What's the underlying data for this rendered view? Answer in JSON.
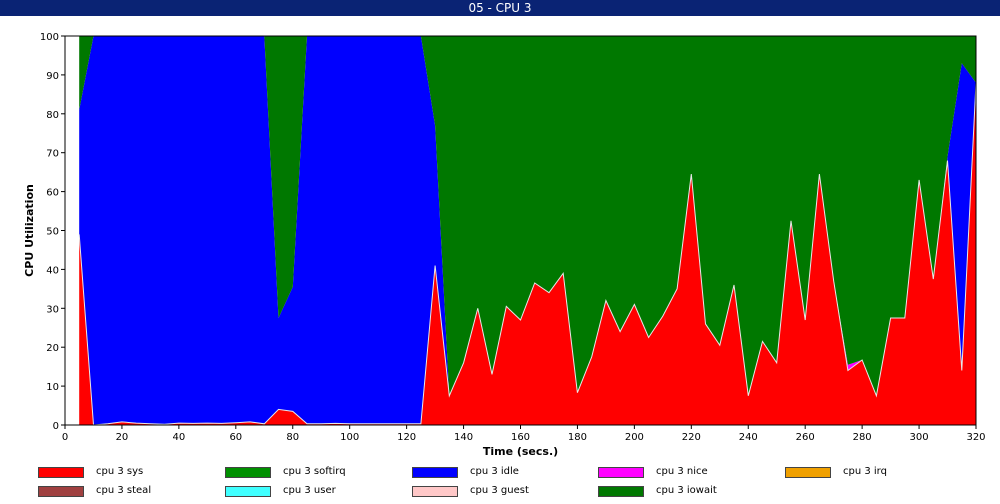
{
  "window": {
    "title": "05 - CPU 3"
  },
  "chart_data": {
    "type": "area",
    "stacked": true,
    "title": "",
    "xlabel": "Time (secs.)",
    "ylabel": "CPU Utilization",
    "xlim": [
      0,
      320
    ],
    "ylim": [
      0,
      100
    ],
    "xticks": [
      0,
      20,
      40,
      60,
      80,
      100,
      120,
      140,
      160,
      180,
      200,
      220,
      240,
      260,
      280,
      300,
      320
    ],
    "yticks": [
      0,
      10,
      20,
      30,
      40,
      50,
      60,
      70,
      80,
      90,
      100
    ],
    "legend_placement": "bottom",
    "x": [
      5,
      10,
      15,
      20,
      25,
      30,
      35,
      40,
      45,
      50,
      55,
      60,
      65,
      70,
      75,
      80,
      85,
      90,
      95,
      100,
      105,
      110,
      115,
      120,
      125,
      130,
      135,
      140,
      145,
      150,
      155,
      160,
      165,
      170,
      175,
      180,
      185,
      190,
      195,
      200,
      205,
      210,
      215,
      220,
      225,
      230,
      235,
      240,
      245,
      250,
      255,
      260,
      265,
      270,
      275,
      280,
      285,
      290,
      295,
      300,
      305,
      310,
      315,
      320
    ],
    "series": [
      {
        "name": "cpu 3 sys",
        "color": "#ff0000",
        "values": [
          49,
          0,
          0.3,
          0.8,
          0.5,
          0.3,
          0.2,
          0.5,
          0.4,
          0.5,
          0.4,
          0.6,
          0.8,
          0.3,
          4,
          3.5,
          0.3,
          0.3,
          0.4,
          0.3,
          0.3,
          0.3,
          0.3,
          0.3,
          0.3,
          41,
          7.5,
          16,
          30,
          13,
          30.5,
          27,
          36.5,
          34,
          39,
          8.3,
          17.5,
          32,
          24,
          31,
          22.5,
          28,
          35,
          64.5,
          26,
          20.5,
          36,
          7.5,
          21.5,
          16,
          52.5,
          27,
          64.5,
          37,
          14,
          16.7,
          7.5,
          27.5,
          27.5,
          63,
          37.5,
          68,
          14,
          88
        ]
      },
      {
        "name": "cpu 3 softirq",
        "color": "#009000",
        "values": [
          0,
          0,
          0,
          0,
          0,
          0,
          0,
          0,
          0,
          0,
          0,
          0,
          0,
          0,
          0,
          0,
          0,
          0,
          0,
          0,
          0,
          0,
          0,
          0,
          0,
          0,
          0,
          0,
          0,
          0,
          0,
          0,
          0,
          0,
          0,
          0,
          0,
          0,
          0,
          0,
          0,
          0,
          0,
          0,
          0,
          0,
          0,
          0,
          0,
          0,
          0,
          0,
          0,
          0,
          0,
          0,
          0,
          0,
          0,
          0,
          0,
          0,
          0,
          0
        ]
      },
      {
        "name": "cpu 3 idle",
        "color": "#0000ff",
        "values": [
          32,
          100,
          99.7,
          99.2,
          99.5,
          99.7,
          99.8,
          99.5,
          99.6,
          99.5,
          99.6,
          99.4,
          99.2,
          99.7,
          23.5,
          32,
          99.7,
          99.7,
          99.6,
          99.7,
          99.7,
          99.7,
          99.7,
          99.7,
          99.7,
          36,
          0,
          0,
          0,
          0,
          0,
          0,
          0,
          0,
          0,
          0,
          0,
          0,
          0,
          0,
          0,
          0,
          0,
          0,
          0,
          0,
          0,
          0,
          0,
          0,
          0,
          0,
          0,
          0,
          0,
          0,
          0,
          0,
          0,
          0,
          0,
          1,
          79,
          0
        ]
      },
      {
        "name": "cpu 3 nice",
        "color": "#ff00ff",
        "values": [
          0,
          0,
          0,
          0,
          0,
          0,
          0,
          0,
          0,
          0,
          0,
          0,
          0,
          0,
          0,
          0,
          0,
          0,
          0,
          0,
          0,
          0,
          0,
          0,
          0,
          0,
          0,
          0,
          0,
          0,
          0,
          0,
          0,
          0,
          0,
          0,
          0,
          0,
          0,
          0,
          0,
          0,
          0,
          0,
          0,
          0,
          0,
          0,
          0,
          0,
          0,
          0,
          0,
          0,
          1.5,
          0,
          0,
          0,
          0,
          0,
          0,
          0,
          0,
          0
        ]
      },
      {
        "name": "cpu 3 irq",
        "color": "#f0a000",
        "values": [
          0,
          0,
          0,
          0,
          0,
          0,
          0,
          0,
          0,
          0,
          0,
          0,
          0,
          0,
          0,
          0,
          0,
          0,
          0,
          0,
          0,
          0,
          0,
          0,
          0,
          0,
          0,
          0,
          0,
          0,
          0,
          0,
          0,
          0,
          0,
          0,
          0,
          0,
          0,
          0,
          0,
          0,
          0,
          0,
          0,
          0,
          0,
          0,
          0,
          0,
          0,
          0,
          0,
          0,
          0,
          0,
          0,
          0,
          0,
          0,
          0,
          0,
          0,
          0
        ]
      },
      {
        "name": "cpu 3 steal",
        "color": "#a04040",
        "values": [
          0,
          0,
          0,
          0,
          0,
          0,
          0,
          0,
          0,
          0,
          0,
          0,
          0,
          0,
          0,
          0,
          0,
          0,
          0,
          0,
          0,
          0,
          0,
          0,
          0,
          0,
          0,
          0,
          0,
          0,
          0,
          0,
          0,
          0,
          0,
          0,
          0,
          0,
          0,
          0,
          0,
          0,
          0,
          0,
          0,
          0,
          0,
          0,
          0,
          0,
          0,
          0,
          0,
          0,
          0,
          0,
          0,
          0,
          0,
          0,
          0,
          0,
          0,
          0
        ]
      },
      {
        "name": "cpu 3 user",
        "color": "#40ffff",
        "values": [
          0,
          0,
          0,
          0,
          0,
          0,
          0,
          0,
          0,
          0,
          0,
          0,
          0,
          0,
          0,
          0,
          0,
          0,
          0,
          0,
          0,
          0,
          0,
          0,
          0,
          0,
          0,
          0,
          0,
          0,
          0,
          0,
          0,
          0,
          0,
          0,
          0,
          0,
          0,
          0,
          0,
          0,
          0,
          0,
          0,
          0,
          0,
          0,
          0,
          0,
          0,
          0,
          0,
          0,
          0,
          0,
          0,
          0,
          0,
          0,
          0,
          0,
          0,
          0
        ]
      },
      {
        "name": "cpu 3 guest",
        "color": "#ffc8c8",
        "values": [
          0,
          0,
          0,
          0,
          0,
          0,
          0,
          0,
          0,
          0,
          0,
          0,
          0,
          0,
          0,
          0,
          0,
          0,
          0,
          0,
          0,
          0,
          0,
          0,
          0,
          0,
          0,
          0,
          0,
          0,
          0,
          0,
          0,
          0,
          0,
          0,
          0,
          0,
          0,
          0,
          0,
          0,
          0,
          0,
          0,
          0,
          0,
          0,
          0,
          0,
          0,
          0,
          0,
          0,
          0,
          0,
          0,
          0,
          0,
          0,
          0,
          0,
          0,
          0
        ]
      },
      {
        "name": "cpu 3 iowait",
        "color": "#007800",
        "values": [
          19,
          0,
          0,
          0,
          0,
          0,
          0,
          0,
          0,
          0,
          0,
          0,
          0,
          0,
          72.5,
          64.5,
          0,
          0,
          0,
          0,
          0,
          0,
          0,
          0,
          0,
          23,
          92.5,
          84,
          70,
          87,
          69.5,
          73,
          63.5,
          66,
          61,
          91.7,
          82.5,
          68,
          76,
          69,
          77.5,
          72,
          65,
          35.5,
          74,
          79.5,
          64,
          92.5,
          78.5,
          84,
          47.5,
          73,
          35.5,
          63,
          84.5,
          83.3,
          92.5,
          72.5,
          72.5,
          37,
          62.5,
          31,
          7,
          12
        ]
      }
    ]
  }
}
